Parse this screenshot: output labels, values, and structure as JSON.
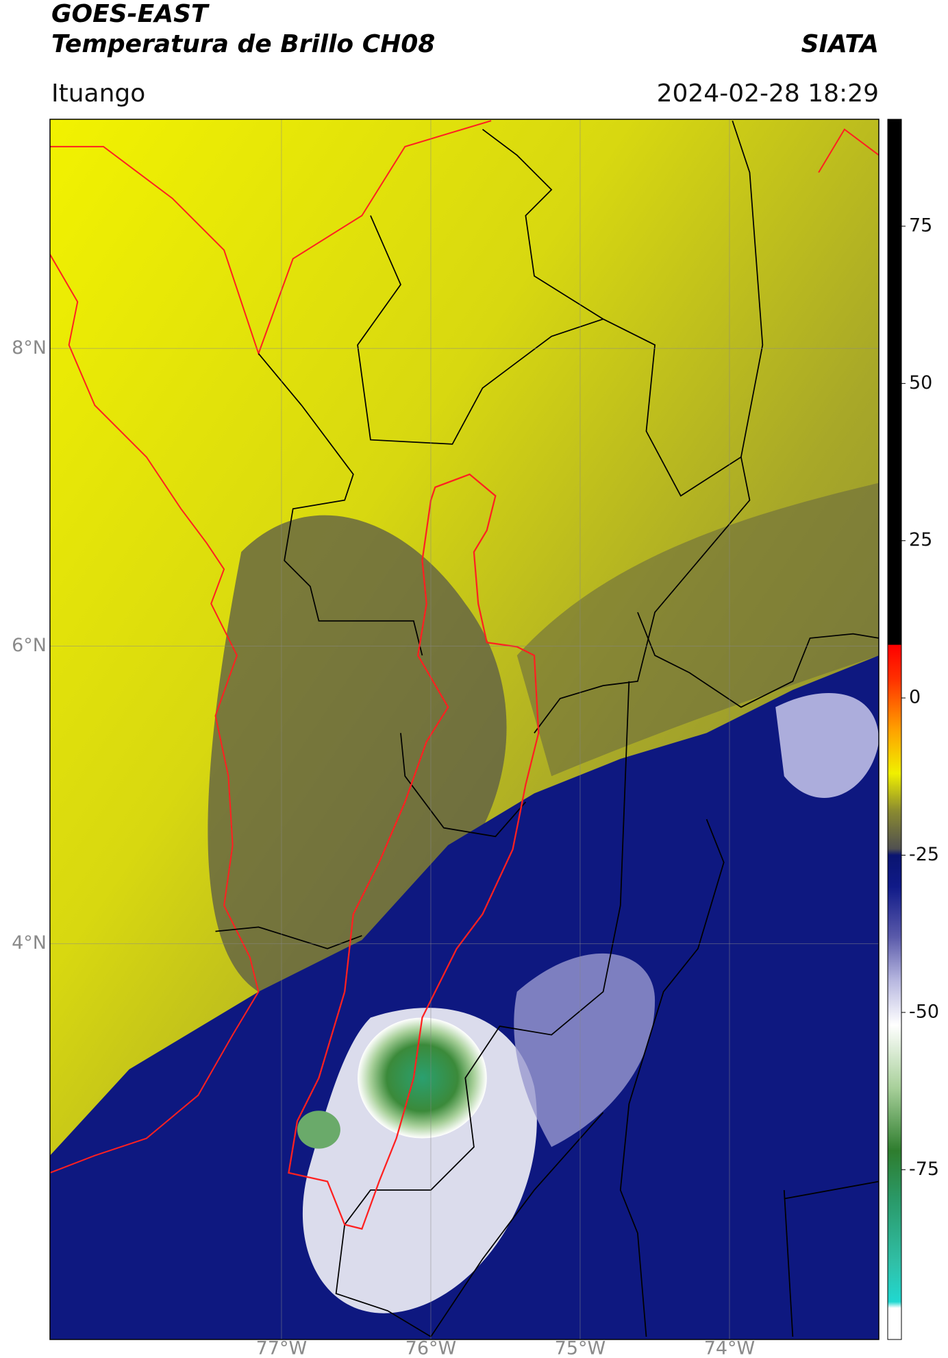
{
  "header": {
    "title": "GOES-EAST",
    "subtitle": "Temperatura de Brillo CH08",
    "source": "SIATA",
    "location": "Ituango",
    "timestamp": "2024-02-28 18:29"
  },
  "map": {
    "xlim": [
      -78.55,
      -73.0
    ],
    "ylim": [
      1.34,
      9.54
    ],
    "xticks": [
      {
        "value": -77,
        "label": "77°W"
      },
      {
        "value": -76,
        "label": "76°W"
      },
      {
        "value": -75,
        "label": "75°W"
      },
      {
        "value": -74,
        "label": "74°W"
      }
    ],
    "yticks": [
      {
        "value": 8,
        "label": "8°N"
      },
      {
        "value": 6,
        "label": "6°N"
      },
      {
        "value": 4,
        "label": "4°N"
      }
    ],
    "grid": true
  },
  "colorbar": {
    "lim": [
      -102,
      92
    ],
    "ticks": [
      75,
      50,
      25,
      0,
      -25,
      -50,
      -75
    ],
    "colormap": [
      {
        "value": -102,
        "color": "#ffffff"
      },
      {
        "value": -97,
        "color": "#ffffff"
      },
      {
        "value": -96,
        "color": "#20d8d0"
      },
      {
        "value": -90,
        "color": "#30c0a8"
      },
      {
        "value": -80,
        "color": "#2a9a6a"
      },
      {
        "value": -72,
        "color": "#2e7d2e"
      },
      {
        "value": -62,
        "color": "#a8d09a"
      },
      {
        "value": -52,
        "color": "#ffffff"
      },
      {
        "value": -45,
        "color": "#b8b8e0"
      },
      {
        "value": -38,
        "color": "#5a5aaa"
      },
      {
        "value": -30,
        "color": "#101a88"
      },
      {
        "value": -25,
        "color": "#0a1470"
      },
      {
        "value": -24,
        "color": "#505050"
      },
      {
        "value": -18,
        "color": "#8a8a30"
      },
      {
        "value": -12,
        "color": "#f0f000"
      },
      {
        "value": -5,
        "color": "#ffa000"
      },
      {
        "value": 3,
        "color": "#ff3000"
      },
      {
        "value": 8.4,
        "color": "#ff0000"
      },
      {
        "value": 8.5,
        "color": "#000000"
      },
      {
        "value": 92,
        "color": "#000000"
      }
    ]
  }
}
